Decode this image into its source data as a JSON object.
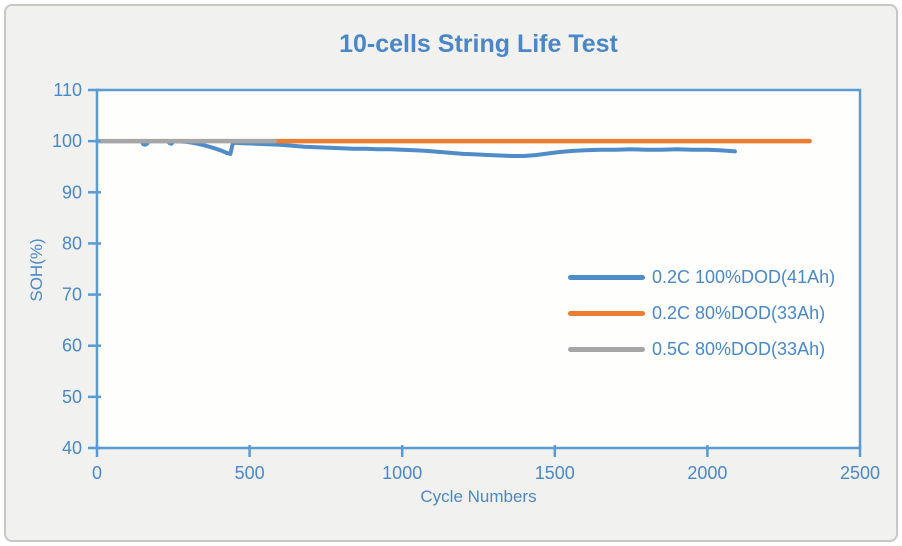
{
  "window": {
    "background": "#f1f1ef",
    "border_color": "#c7c7c5",
    "plot_background": "#fefefd"
  },
  "chart_data": {
    "type": "line",
    "title": "10-cells String Life Test",
    "xlabel": "Cycle Numbers",
    "ylabel": "SOH(%)",
    "xlim": [
      0,
      2500
    ],
    "ylim": [
      40,
      110
    ],
    "xticks": [
      0,
      500,
      1000,
      1500,
      2000,
      2500
    ],
    "yticks": [
      40,
      50,
      60,
      70,
      80,
      90,
      100,
      110
    ],
    "grid": false,
    "legend_position": "middle-right",
    "axis_color": "#5b9bd5",
    "text_color": "#4a88c8",
    "title_color": "#4a86c8",
    "series": [
      {
        "name": "0.2C 100%DOD(41Ah)",
        "color": "#4e8cca",
        "width": 4,
        "points": [
          [
            0,
            100
          ],
          [
            60,
            100
          ],
          [
            120,
            100
          ],
          [
            145,
            100
          ],
          [
            152,
            99.4
          ],
          [
            158,
            99.3
          ],
          [
            164,
            99.5
          ],
          [
            170,
            100
          ],
          [
            200,
            100
          ],
          [
            232,
            100
          ],
          [
            238,
            99.6
          ],
          [
            244,
            99.5
          ],
          [
            252,
            100
          ],
          [
            290,
            99.9
          ],
          [
            320,
            99.6
          ],
          [
            350,
            99.2
          ],
          [
            380,
            98.7
          ],
          [
            405,
            98.2
          ],
          [
            425,
            97.7
          ],
          [
            437,
            97.5
          ],
          [
            441,
            98.6
          ],
          [
            446,
            99.7
          ],
          [
            480,
            99.6
          ],
          [
            520,
            99.5
          ],
          [
            560,
            99.4
          ],
          [
            600,
            99.3
          ],
          [
            640,
            99.1
          ],
          [
            680,
            98.9
          ],
          [
            720,
            98.8
          ],
          [
            760,
            98.7
          ],
          [
            800,
            98.6
          ],
          [
            840,
            98.5
          ],
          [
            880,
            98.5
          ],
          [
            920,
            98.4
          ],
          [
            960,
            98.4
          ],
          [
            1000,
            98.3
          ],
          [
            1040,
            98.2
          ],
          [
            1080,
            98.1
          ],
          [
            1120,
            97.9
          ],
          [
            1160,
            97.7
          ],
          [
            1200,
            97.5
          ],
          [
            1240,
            97.4
          ],
          [
            1280,
            97.3
          ],
          [
            1320,
            97.2
          ],
          [
            1360,
            97.1
          ],
          [
            1400,
            97.1
          ],
          [
            1440,
            97.3
          ],
          [
            1480,
            97.6
          ],
          [
            1520,
            97.9
          ],
          [
            1560,
            98.1
          ],
          [
            1600,
            98.2
          ],
          [
            1650,
            98.3
          ],
          [
            1700,
            98.3
          ],
          [
            1750,
            98.4
          ],
          [
            1800,
            98.3
          ],
          [
            1850,
            98.3
          ],
          [
            1900,
            98.4
          ],
          [
            1950,
            98.3
          ],
          [
            2000,
            98.3
          ],
          [
            2040,
            98.2
          ],
          [
            2070,
            98.1
          ],
          [
            2090,
            98.0
          ]
        ]
      },
      {
        "name": "0.2C 80%DOD(33Ah)",
        "color": "#ed7d31",
        "width": 4.5,
        "points": [
          [
            580,
            100
          ],
          [
            2335,
            100
          ]
        ]
      },
      {
        "name": "0.5C 80%DOD(33Ah)",
        "color": "#a6a6a6",
        "width": 4.5,
        "points": [
          [
            0,
            100
          ],
          [
            582,
            100
          ]
        ]
      }
    ]
  }
}
